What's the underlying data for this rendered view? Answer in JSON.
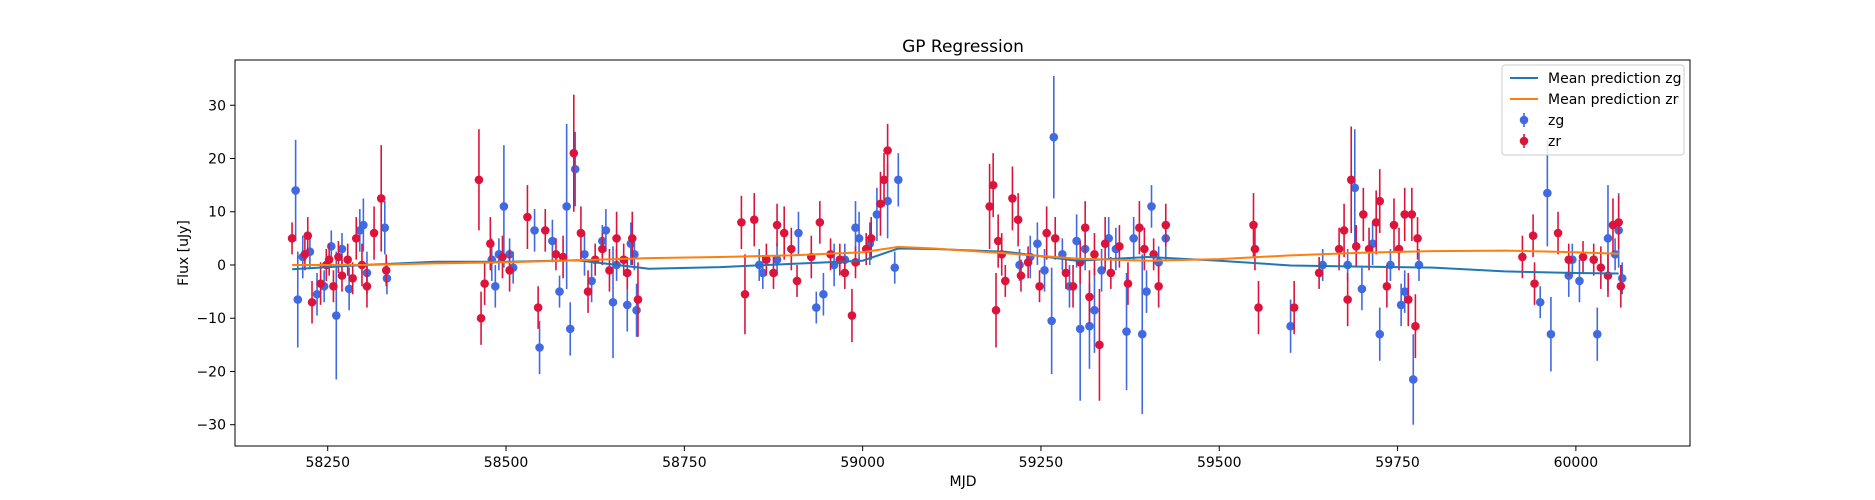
{
  "chart_data": {
    "type": "scatter",
    "title": "GP Regression",
    "xlabel": "MJD",
    "ylabel": "Flux [uJy]",
    "xlim": [
      58120,
      60160
    ],
    "ylim": [
      -34,
      38.5
    ],
    "xticks": [
      58250,
      58500,
      58750,
      59000,
      59250,
      59500,
      59750,
      60000
    ],
    "yticks": [
      -30,
      -20,
      -10,
      0,
      10,
      20,
      30
    ],
    "grid": false,
    "legend_position": "top-right",
    "colors": {
      "mean_zg": "#1f77b4",
      "mean_zr": "#ff7f0e",
      "zg": "#4169e1",
      "zr": "#dc143c"
    },
    "legend": [
      {
        "label": "Mean prediction zg",
        "kind": "line",
        "color": "#1f77b4"
      },
      {
        "label": "Mean prediction zr",
        "kind": "line",
        "color": "#ff7f0e"
      },
      {
        "label": "zg",
        "kind": "point",
        "color": "#4169e1"
      },
      {
        "label": "zr",
        "kind": "point",
        "color": "#dc143c"
      }
    ],
    "mean_zg": {
      "name": "Mean prediction zg",
      "x": [
        58200,
        58300,
        58400,
        58500,
        58600,
        58700,
        58800,
        58900,
        59000,
        59050,
        59100,
        59200,
        59300,
        59400,
        59500,
        59600,
        59700,
        59800,
        59900,
        60000,
        60060
      ],
      "y": [
        -0.8,
        0.0,
        0.6,
        0.6,
        0.9,
        -0.7,
        -0.4,
        0.2,
        0.8,
        3.1,
        3.0,
        2.5,
        0.8,
        1.5,
        0.8,
        -0.1,
        -0.3,
        -0.5,
        -1.2,
        -1.5,
        -1.6
      ]
    },
    "mean_zr": {
      "name": "Mean prediction zr",
      "x": [
        58200,
        58300,
        58400,
        58500,
        58600,
        58700,
        58800,
        58900,
        59000,
        59050,
        59100,
        59200,
        59300,
        59400,
        59500,
        59600,
        59700,
        59800,
        59900,
        60000,
        60060
      ],
      "y": [
        0.0,
        0.0,
        0.3,
        0.5,
        0.9,
        1.3,
        1.5,
        1.8,
        2.4,
        3.4,
        3.1,
        2.2,
        1.2,
        0.8,
        1.1,
        1.8,
        2.3,
        2.6,
        2.7,
        2.4,
        2.1
      ]
    },
    "series": [
      {
        "name": "zg",
        "points": [
          [
            58205,
            14.0,
            9.5
          ],
          [
            58208,
            -6.5,
            9
          ],
          [
            58215,
            1.5,
            4
          ],
          [
            58225,
            2.5,
            3
          ],
          [
            58235,
            -5.5,
            4
          ],
          [
            58245,
            -4.0,
            3
          ],
          [
            58255,
            3.5,
            3
          ],
          [
            58262,
            -9.5,
            12
          ],
          [
            58270,
            3.0,
            3
          ],
          [
            58280,
            -4.5,
            4
          ],
          [
            58295,
            6.5,
            4
          ],
          [
            58300,
            7.5,
            5
          ],
          [
            58305,
            -1.5,
            4
          ],
          [
            58330,
            7.0,
            5
          ],
          [
            58333,
            -2.5,
            3
          ],
          [
            58480,
            1.0,
            4
          ],
          [
            58485,
            -4.0,
            4
          ],
          [
            58490,
            2.0,
            3
          ],
          [
            58497,
            11.0,
            11.5
          ],
          [
            58505,
            2.0,
            3
          ],
          [
            58510,
            -0.5,
            3
          ],
          [
            58540,
            6.5,
            4
          ],
          [
            58547,
            -15.5,
            5
          ],
          [
            58565,
            4.5,
            4
          ],
          [
            58575,
            -5.0,
            3
          ],
          [
            58585,
            11.0,
            15.5
          ],
          [
            58590,
            -12.0,
            5
          ],
          [
            58597,
            18.0,
            7
          ],
          [
            58610,
            2.0,
            4
          ],
          [
            58620,
            -3.0,
            4
          ],
          [
            58635,
            4.5,
            3
          ],
          [
            58640,
            6.5,
            4
          ],
          [
            58650,
            -7.0,
            10.5
          ],
          [
            58655,
            0.0,
            3
          ],
          [
            58670,
            -7.5,
            5
          ],
          [
            58675,
            4.0,
            4
          ],
          [
            58680,
            2.0,
            3
          ],
          [
            58683,
            -8.5,
            5
          ],
          [
            58855,
            0.0,
            3
          ],
          [
            58860,
            -1.5,
            3
          ],
          [
            58880,
            1.0,
            3
          ],
          [
            58910,
            6.0,
            4
          ],
          [
            58935,
            -8.0,
            3
          ],
          [
            58945,
            -5.5,
            4
          ],
          [
            58960,
            0.0,
            4
          ],
          [
            58975,
            1.0,
            3
          ],
          [
            58990,
            7.0,
            5
          ],
          [
            58995,
            5.0,
            5
          ],
          [
            59010,
            4.0,
            4
          ],
          [
            59020,
            9.5,
            5
          ],
          [
            59035,
            12.0,
            7
          ],
          [
            59045,
            -0.5,
            3
          ],
          [
            59050,
            16.0,
            5
          ],
          [
            59220,
            0.0,
            3
          ],
          [
            59235,
            1.5,
            4
          ],
          [
            59245,
            4.0,
            4
          ],
          [
            59255,
            -1.0,
            4
          ],
          [
            59265,
            -10.5,
            10
          ],
          [
            59268,
            24.0,
            11.5
          ],
          [
            59280,
            2.0,
            3
          ],
          [
            59290,
            -4.0,
            4
          ],
          [
            59300,
            4.5,
            5
          ],
          [
            59305,
            -12.0,
            13.5
          ],
          [
            59312,
            3.0,
            4
          ],
          [
            59318,
            -11.5,
            8
          ],
          [
            59325,
            -8.5,
            8
          ],
          [
            59335,
            -1.0,
            4
          ],
          [
            59345,
            5.0,
            4
          ],
          [
            59355,
            3.0,
            4
          ],
          [
            59370,
            -12.5,
            11
          ],
          [
            59380,
            5.0,
            4
          ],
          [
            59392,
            -13.0,
            15
          ],
          [
            59398,
            -5.0,
            4
          ],
          [
            59405,
            11.0,
            4
          ],
          [
            59415,
            0.5,
            3
          ],
          [
            59425,
            5.0,
            4
          ],
          [
            59600,
            -11.5,
            5
          ],
          [
            59645,
            0.0,
            3
          ],
          [
            59680,
            0.0,
            3
          ],
          [
            59690,
            14.5,
            11
          ],
          [
            59700,
            -4.5,
            4
          ],
          [
            59715,
            4.0,
            4
          ],
          [
            59725,
            -13.0,
            5
          ],
          [
            59740,
            0.0,
            3
          ],
          [
            59755,
            -7.5,
            4
          ],
          [
            59760,
            -5.0,
            4
          ],
          [
            59772,
            -21.5,
            8.5
          ],
          [
            59780,
            0.0,
            3
          ],
          [
            59950,
            -7.0,
            3
          ],
          [
            59960,
            13.5,
            10
          ],
          [
            59965,
            -13.0,
            7
          ],
          [
            59990,
            -2.0,
            4
          ],
          [
            59995,
            1.0,
            3
          ],
          [
            60005,
            -3.0,
            4
          ],
          [
            60030,
            -13.0,
            5
          ],
          [
            60045,
            5.0,
            10
          ],
          [
            60055,
            2.0,
            3
          ],
          [
            60060,
            6.5,
            7
          ],
          [
            60065,
            -2.5,
            3
          ]
        ]
      },
      {
        "name": "zr",
        "points": [
          [
            58200,
            5.0,
            3
          ],
          [
            58218,
            2.0,
            3
          ],
          [
            58222,
            5.5,
            3.5
          ],
          [
            58228,
            -7.0,
            4
          ],
          [
            58240,
            -3.5,
            4
          ],
          [
            58248,
            0.0,
            3
          ],
          [
            58252,
            1.0,
            3
          ],
          [
            58258,
            -4.0,
            3
          ],
          [
            58265,
            1.5,
            3
          ],
          [
            58270,
            -2.0,
            3
          ],
          [
            58278,
            1.0,
            3
          ],
          [
            58285,
            -2.5,
            3
          ],
          [
            58290,
            5.0,
            4
          ],
          [
            58298,
            0.0,
            4
          ],
          [
            58305,
            -4.0,
            4
          ],
          [
            58315,
            6.0,
            5
          ],
          [
            58325,
            12.5,
            10
          ],
          [
            58332,
            -1.0,
            3
          ],
          [
            58462,
            16.0,
            9.5
          ],
          [
            58465,
            -10.0,
            5
          ],
          [
            58470,
            -3.5,
            4
          ],
          [
            58478,
            4.0,
            5
          ],
          [
            58495,
            1.5,
            4
          ],
          [
            58505,
            -1.0,
            4
          ],
          [
            58530,
            9.0,
            6
          ],
          [
            58545,
            -8.0,
            4
          ],
          [
            58555,
            6.5,
            4
          ],
          [
            58570,
            2.0,
            3
          ],
          [
            58580,
            1.5,
            4
          ],
          [
            58595,
            21.0,
            11
          ],
          [
            58605,
            6.0,
            5
          ],
          [
            58615,
            -5.0,
            4
          ],
          [
            58625,
            1.0,
            3
          ],
          [
            58635,
            3.0,
            3
          ],
          [
            58645,
            -1.0,
            4
          ],
          [
            58655,
            5.0,
            5
          ],
          [
            58665,
            1.0,
            3
          ],
          [
            58670,
            -1.5,
            3
          ],
          [
            58677,
            5.0,
            5
          ],
          [
            58685,
            -6.5,
            7
          ],
          [
            58830,
            8.0,
            5
          ],
          [
            58835,
            -5.5,
            7.5
          ],
          [
            58848,
            8.5,
            5
          ],
          [
            58865,
            1.0,
            3
          ],
          [
            58875,
            -1.5,
            3
          ],
          [
            58880,
            7.5,
            4
          ],
          [
            58890,
            6.0,
            5
          ],
          [
            58900,
            3.0,
            4
          ],
          [
            58908,
            -3.0,
            3
          ],
          [
            58928,
            1.5,
            4
          ],
          [
            58940,
            8.0,
            4
          ],
          [
            58955,
            2.0,
            3
          ],
          [
            58968,
            1.0,
            3
          ],
          [
            58975,
            -1.5,
            3
          ],
          [
            58985,
            -9.5,
            5
          ],
          [
            58990,
            0.5,
            3
          ],
          [
            59005,
            3.0,
            3
          ],
          [
            59012,
            5.0,
            4
          ],
          [
            59025,
            11.5,
            6
          ],
          [
            59030,
            16.0,
            5
          ],
          [
            59035,
            21.5,
            5
          ],
          [
            59178,
            11.0,
            8
          ],
          [
            59183,
            15.0,
            6
          ],
          [
            59187,
            -8.5,
            7
          ],
          [
            59190,
            4.5,
            5
          ],
          [
            59195,
            2.0,
            4
          ],
          [
            59200,
            -3.0,
            3
          ],
          [
            59210,
            12.5,
            6
          ],
          [
            59218,
            8.5,
            5
          ],
          [
            59222,
            -2.0,
            3
          ],
          [
            59232,
            0.5,
            3
          ],
          [
            59248,
            -4.0,
            3
          ],
          [
            59258,
            6.0,
            5
          ],
          [
            59270,
            5.0,
            4
          ],
          [
            59285,
            -1.5,
            3
          ],
          [
            59295,
            -4.0,
            4
          ],
          [
            59305,
            0.5,
            4
          ],
          [
            59312,
            7.0,
            5
          ],
          [
            59318,
            -6.0,
            5
          ],
          [
            59325,
            2.0,
            4
          ],
          [
            59332,
            -15.0,
            10.5
          ],
          [
            59340,
            4.0,
            5
          ],
          [
            59348,
            -1.5,
            3
          ],
          [
            59360,
            3.5,
            4
          ],
          [
            59372,
            -3.5,
            4
          ],
          [
            59388,
            7.0,
            5
          ],
          [
            59395,
            3.0,
            4
          ],
          [
            59408,
            2.0,
            3
          ],
          [
            59415,
            -4.0,
            4
          ],
          [
            59425,
            7.5,
            4
          ],
          [
            59548,
            7.5,
            6
          ],
          [
            59550,
            3.0,
            4
          ],
          [
            59555,
            -8.0,
            5
          ],
          [
            59605,
            -8.0,
            5
          ],
          [
            59640,
            -1.5,
            3
          ],
          [
            59668,
            3.0,
            4
          ],
          [
            59675,
            6.5,
            5
          ],
          [
            59680,
            -6.5,
            5
          ],
          [
            59685,
            16.0,
            10
          ],
          [
            59692,
            3.5,
            4
          ],
          [
            59702,
            9.5,
            5
          ],
          [
            59710,
            3.0,
            4
          ],
          [
            59720,
            8.0,
            6
          ],
          [
            59725,
            12.0,
            6
          ],
          [
            59735,
            -4.0,
            4
          ],
          [
            59745,
            7.5,
            5
          ],
          [
            59752,
            3.0,
            4
          ],
          [
            59760,
            9.5,
            5
          ],
          [
            59765,
            -6.5,
            5
          ],
          [
            59770,
            9.5,
            5
          ],
          [
            59775,
            -11.5,
            6
          ],
          [
            59778,
            5.0,
            4
          ],
          [
            59925,
            1.5,
            4
          ],
          [
            59940,
            5.5,
            4
          ],
          [
            59942,
            -3.5,
            4
          ],
          [
            59975,
            6.0,
            4
          ],
          [
            59990,
            1.0,
            3
          ],
          [
            60010,
            1.5,
            3
          ],
          [
            60025,
            1.0,
            3
          ],
          [
            60035,
            -0.5,
            4
          ],
          [
            60045,
            -2.0,
            4
          ],
          [
            60052,
            7.5,
            5
          ],
          [
            60060,
            8.0,
            5
          ],
          [
            60063,
            -4.0,
            4
          ]
        ]
      }
    ]
  }
}
